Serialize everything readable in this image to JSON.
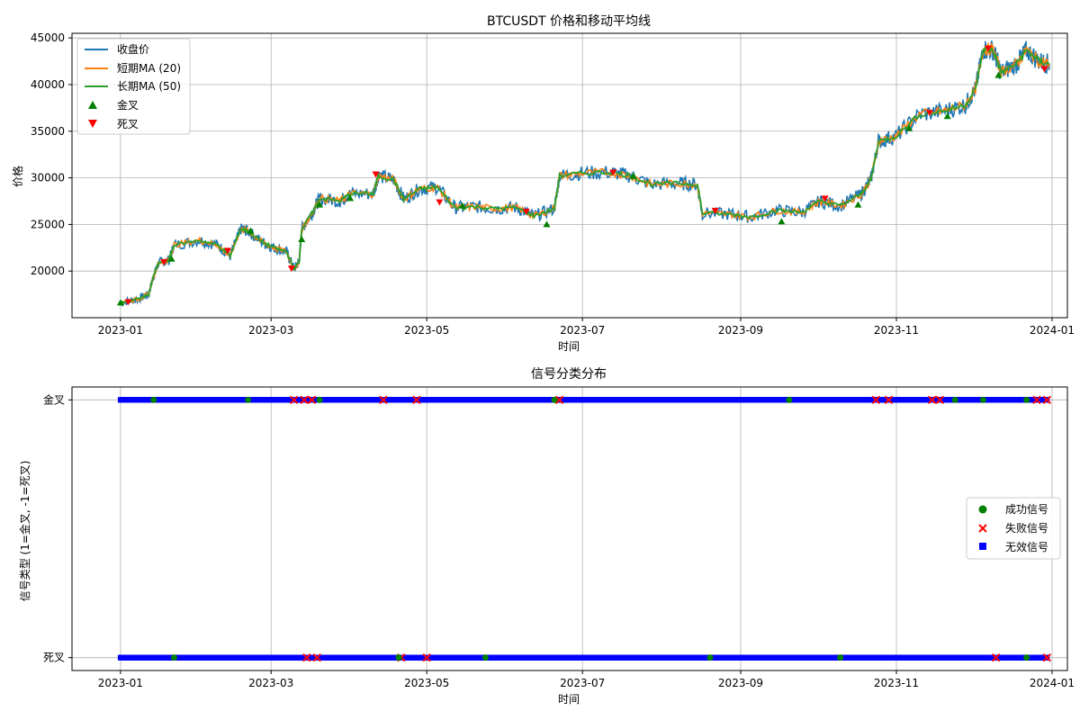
{
  "chart_data": [
    {
      "type": "line",
      "title": "BTCUSDT 价格和移动平均线",
      "xlabel": "时间",
      "ylabel": "价格",
      "xlim": [
        "2022-12-13",
        "2024-01-07"
      ],
      "ylim": [
        15000,
        45500
      ],
      "x_ticks": [
        "2023-01",
        "2023-03",
        "2023-05",
        "2023-07",
        "2023-09",
        "2023-11",
        "2024-01"
      ],
      "y_ticks": [
        20000,
        25000,
        30000,
        35000,
        40000,
        45000
      ],
      "grid": true,
      "legend": {
        "placement": "top-left",
        "entries": [
          "收盘价",
          "短期MA (20)",
          "长期MA (50)",
          "金叉",
          "死叉"
        ]
      },
      "colors": {
        "close": "#1f77b4",
        "ma_short": "#ff7f0e",
        "ma_long": "#2ca02c",
        "golden_cross": "#008000",
        "death_cross": "#ff0000"
      },
      "series": [
        {
          "name": "收盘价",
          "points": [
            [
              "2023-01-01",
              16600
            ],
            [
              "2023-01-08",
              17000
            ],
            [
              "2023-01-12",
              17500
            ],
            [
              "2023-01-14",
              19500
            ],
            [
              "2023-01-16",
              20900
            ],
            [
              "2023-01-20",
              21200
            ],
            [
              "2023-01-22",
              22800
            ],
            [
              "2023-02-01",
              23300
            ],
            [
              "2023-02-08",
              22800
            ],
            [
              "2023-02-13",
              21600
            ],
            [
              "2023-02-17",
              24500
            ],
            [
              "2023-02-20",
              24300
            ],
            [
              "2023-02-25",
              23200
            ],
            [
              "2023-03-02",
              22500
            ],
            [
              "2023-03-07",
              22100
            ],
            [
              "2023-03-10",
              20200
            ],
            [
              "2023-03-12",
              21000
            ],
            [
              "2023-03-13",
              24500
            ],
            [
              "2023-03-17",
              26200
            ],
            [
              "2023-03-20",
              27800
            ],
            [
              "2023-03-28",
              27500
            ],
            [
              "2023-04-01",
              28300
            ],
            [
              "2023-04-10",
              28300
            ],
            [
              "2023-04-12",
              30200
            ],
            [
              "2023-04-18",
              29800
            ],
            [
              "2023-04-22",
              27700
            ],
            [
              "2023-04-28",
              28800
            ],
            [
              "2023-05-05",
              29000
            ],
            [
              "2023-05-12",
              26800
            ],
            [
              "2023-05-20",
              26900
            ],
            [
              "2023-05-28",
              26700
            ],
            [
              "2023-06-05",
              26800
            ],
            [
              "2023-06-12",
              25900
            ],
            [
              "2023-06-20",
              26700
            ],
            [
              "2023-06-22",
              30200
            ],
            [
              "2023-07-01",
              30500
            ],
            [
              "2023-07-12",
              30600
            ],
            [
              "2023-07-20",
              30200
            ],
            [
              "2023-07-28",
              29300
            ],
            [
              "2023-08-08",
              29400
            ],
            [
              "2023-08-15",
              29300
            ],
            [
              "2023-08-17",
              26200
            ],
            [
              "2023-08-28",
              26100
            ],
            [
              "2023-09-05",
              25800
            ],
            [
              "2023-09-15",
              26500
            ],
            [
              "2023-09-25",
              26300
            ],
            [
              "2023-10-02",
              27500
            ],
            [
              "2023-10-10",
              27000
            ],
            [
              "2023-10-18",
              28200
            ],
            [
              "2023-10-22",
              29800
            ],
            [
              "2023-10-25",
              33900
            ],
            [
              "2023-11-01",
              34500
            ],
            [
              "2023-11-10",
              36800
            ],
            [
              "2023-11-20",
              37200
            ],
            [
              "2023-11-28",
              37800
            ],
            [
              "2023-12-02",
              39500
            ],
            [
              "2023-12-05",
              43800
            ],
            [
              "2023-12-09",
              43700
            ],
            [
              "2023-12-12",
              41300
            ],
            [
              "2023-12-18",
              42200
            ],
            [
              "2023-12-22",
              43700
            ],
            [
              "2023-12-27",
              42500
            ],
            [
              "2023-12-31",
              42200
            ]
          ]
        },
        {
          "name": "短期MA (20)",
          "note": "tracks close price closely"
        },
        {
          "name": "长期MA (50)",
          "note": "tracks close price closely"
        }
      ],
      "markers": {
        "金叉": [
          [
            "2023-01-01",
            16600
          ],
          [
            "2023-01-21",
            21300
          ],
          [
            "2023-02-21",
            24300
          ],
          [
            "2023-03-13",
            23400
          ],
          [
            "2023-03-20",
            27100
          ],
          [
            "2023-04-01",
            27800
          ],
          [
            "2023-05-15",
            27000
          ],
          [
            "2023-06-17",
            25000
          ],
          [
            "2023-07-21",
            30200
          ],
          [
            "2023-09-17",
            25300
          ],
          [
            "2023-10-17",
            27100
          ],
          [
            "2023-11-06",
            35300
          ],
          [
            "2023-11-21",
            36600
          ],
          [
            "2023-12-11",
            41000
          ]
        ],
        "死叉": [
          [
            "2023-01-04",
            16700
          ],
          [
            "2023-01-18",
            21000
          ],
          [
            "2023-02-12",
            22200
          ],
          [
            "2023-03-09",
            20300
          ],
          [
            "2023-04-11",
            30400
          ],
          [
            "2023-05-06",
            27400
          ],
          [
            "2023-06-09",
            26400
          ],
          [
            "2023-07-13",
            30600
          ],
          [
            "2023-08-22",
            26500
          ],
          [
            "2023-10-04",
            27800
          ],
          [
            "2023-11-14",
            37000
          ],
          [
            "2023-12-07",
            43900
          ],
          [
            "2023-12-29",
            41700
          ]
        ]
      }
    },
    {
      "type": "scatter",
      "title": "信号分类分布",
      "xlabel": "时间",
      "ylabel": "信号类型 (1=金叉, -1=死叉)",
      "xlim": [
        "2022-12-13",
        "2024-01-07"
      ],
      "ylim": [
        -1.1,
        1.1
      ],
      "x_ticks": [
        "2023-01",
        "2023-03",
        "2023-05",
        "2023-07",
        "2023-09",
        "2023-11",
        "2024-01"
      ],
      "y_ticks": [
        {
          "value": 1,
          "label": "金叉"
        },
        {
          "value": -1,
          "label": "死叉"
        }
      ],
      "grid": true,
      "legend": {
        "placement": "center-right",
        "entries": [
          "成功信号",
          "失败信号",
          "无效信号"
        ]
      },
      "colors": {
        "success": "#008000",
        "failure": "#ff0000",
        "invalid": "#0000ff"
      },
      "series": [
        {
          "name": "无效信号",
          "y_levels": [
            1,
            -1
          ],
          "x_range": [
            "2023-01-01",
            "2023-12-30"
          ],
          "note": "dense continuous band of markers along both levels"
        },
        {
          "name": "成功信号",
          "points": [
            [
              "2023-01-14",
              1
            ],
            [
              "2023-02-20",
              1
            ],
            [
              "2023-03-20",
              1
            ],
            [
              "2023-06-20",
              1
            ],
            [
              "2023-09-20",
              1
            ],
            [
              "2023-11-24",
              1
            ],
            [
              "2023-12-05",
              1
            ],
            [
              "2023-12-22",
              1
            ],
            [
              "2023-01-22",
              -1
            ],
            [
              "2023-04-20",
              -1
            ],
            [
              "2023-05-24",
              -1
            ],
            [
              "2023-08-20",
              -1
            ],
            [
              "2023-10-10",
              -1
            ],
            [
              "2023-12-22",
              -1
            ]
          ]
        },
        {
          "name": "失败信号",
          "points": [
            [
              "2023-03-10",
              1
            ],
            [
              "2023-03-14",
              1
            ],
            [
              "2023-03-17",
              1
            ],
            [
              "2023-04-14",
              1
            ],
            [
              "2023-04-27",
              1
            ],
            [
              "2023-06-22",
              1
            ],
            [
              "2023-10-24",
              1
            ],
            [
              "2023-10-29",
              1
            ],
            [
              "2023-11-15",
              1
            ],
            [
              "2023-11-18",
              1
            ],
            [
              "2023-12-26",
              1
            ],
            [
              "2023-12-30",
              1
            ],
            [
              "2023-03-15",
              -1
            ],
            [
              "2023-03-19",
              -1
            ],
            [
              "2023-04-21",
              -1
            ],
            [
              "2023-05-01",
              -1
            ],
            [
              "2023-12-10",
              -1
            ],
            [
              "2023-12-30",
              -1
            ]
          ]
        }
      ]
    }
  ]
}
